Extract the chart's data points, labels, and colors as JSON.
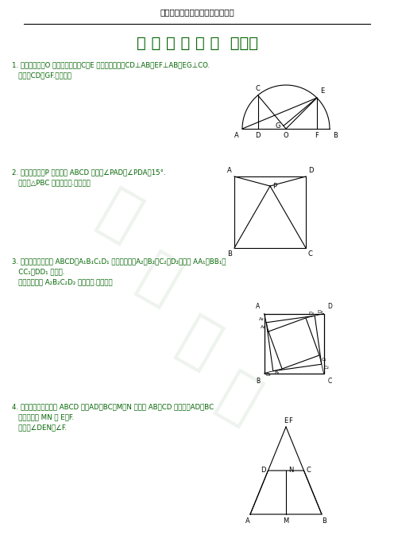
{
  "header_text": "宝剑锋从磨砺出，梅花香自苦寒来",
  "title_text": "经 典 几 何 专 题  （一）",
  "header_color": "#000000",
  "title_color": "#006400",
  "text_color": "#006400",
  "watermark_color": "#c8d8c8",
  "bg_color": "#ffffff",
  "problem1_lines": [
    "1. 已知：如图，O 是半圆的圆心，C、E 是圆上的两点，CD⊥AB，EF⊥AB，EG⊥CO.",
    "   求证：CD＝GF.（初二）"
  ],
  "problem2_lines": [
    "2. 已知：如图，P 是正方形 ABCD 内点，∠PAD＝∠PDA＝15°.",
    "   求证：△PBC 是正三角形.（初二）"
  ],
  "problem3_lines": [
    "3. 如图，已知四边形 ABCD、A₁B₁C₁D₁ 都是正方形，A₂、B₂、C₂、D₂分别是 AA₁、BB₁、",
    "   CC₁、DD₁ 的中点.",
    "   求证：四边形 A₂B₂C₂D₂ 是正方形.（初二）"
  ],
  "problem4_lines": [
    "4. 已知：如图，在梯形 ABCD 中，AD＝BC，M、N 分别是 AB、CD 的中点，AD、BC",
    "   的延长线交 MN 于 E、F.",
    "   求证：∠DEN＝∠F."
  ]
}
